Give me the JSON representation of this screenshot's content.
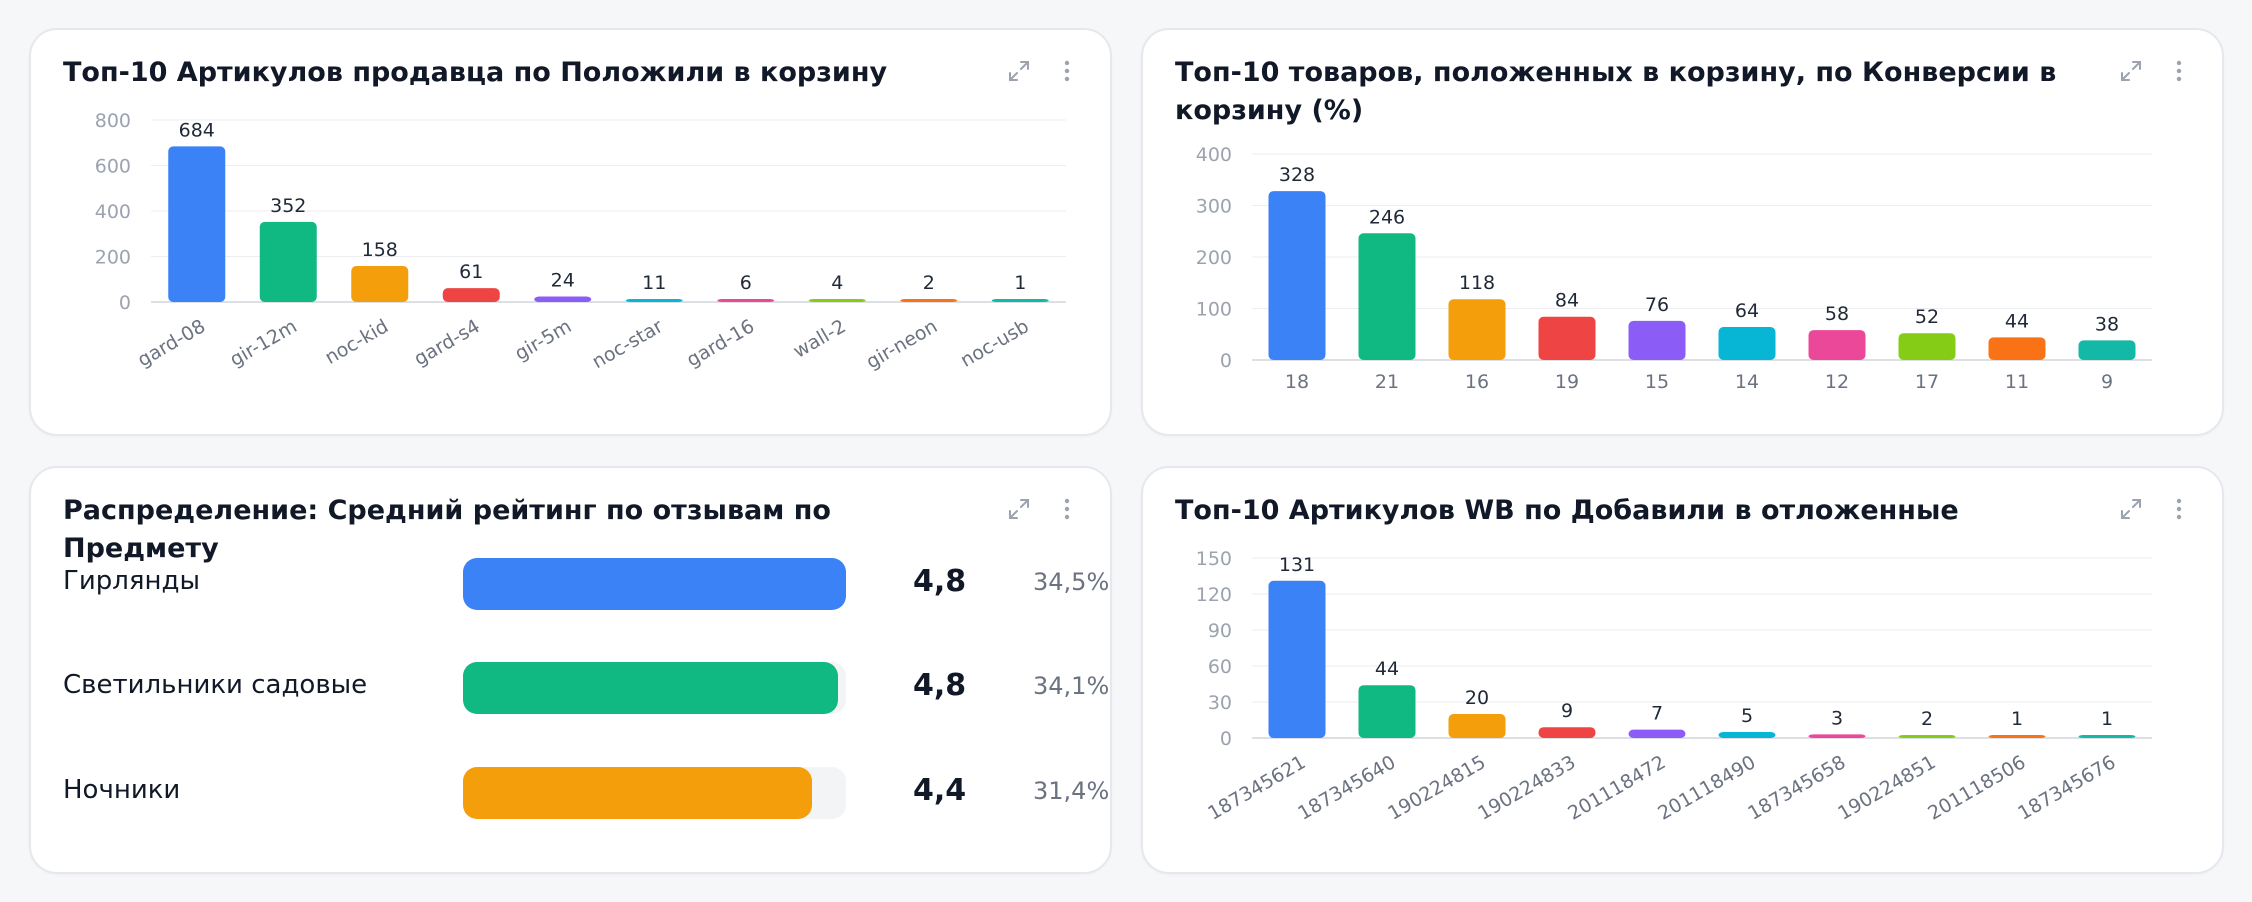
{
  "cards": [
    {
      "title": "Топ-10 Артикулов продавца по Положили в корзину",
      "chart_data": {
        "type": "bar",
        "title": "Топ-10 Артикулов продавца по Положили в корзину",
        "categories": [
          "gard-08",
          "gir-12m",
          "noc-kid",
          "gard-s4",
          "gir-5m",
          "noc-star",
          "gard-16",
          "wall-2",
          "gir-neon",
          "noc-usb"
        ],
        "values": [
          684,
          352,
          158,
          61,
          24,
          11,
          6,
          4,
          2,
          1
        ],
        "yticks": [
          0,
          200,
          400,
          600,
          800
        ],
        "ylim": [
          0,
          800
        ],
        "grid": true,
        "legend": "none",
        "rotated_labels": true,
        "colors": [
          "#3b82f6",
          "#10b981",
          "#f59e0b",
          "#ef4444",
          "#8b5cf6",
          "#06b6d4",
          "#ec4899",
          "#84cc16",
          "#f97316",
          "#14b8a6"
        ]
      }
    },
    {
      "title": "Топ-10 товаров, положенных в корзину, по Конверсии в корзину (%)",
      "chart_data": {
        "type": "bar",
        "title": "Топ-10 товаров, положенных в корзину, по Конверсии в корзину (%)",
        "categories": [
          "18",
          "21",
          "16",
          "19",
          "15",
          "14",
          "12",
          "17",
          "11",
          "9"
        ],
        "values": [
          328,
          246,
          118,
          84,
          76,
          64,
          58,
          52,
          44,
          38
        ],
        "yticks": [
          0,
          100,
          200,
          300,
          400
        ],
        "ylim": [
          0,
          400
        ],
        "grid": true,
        "legend": "none",
        "rotated_labels": false,
        "colors": [
          "#3b82f6",
          "#10b981",
          "#f59e0b",
          "#ef4444",
          "#8b5cf6",
          "#06b6d4",
          "#ec4899",
          "#84cc16",
          "#f97316",
          "#14b8a6"
        ]
      }
    },
    {
      "title": "Распределение: Средний рейтинг по отзывам по Предмету",
      "distribution": {
        "type": "table",
        "rows": [
          {
            "label": "Гирлянды",
            "value": "4,8",
            "share": "34,5%",
            "fill": 1.0,
            "color": "#3b82f6"
          },
          {
            "label": "Светильники садовые",
            "value": "4,8",
            "share": "34,1%",
            "fill": 0.98,
            "color": "#10b981"
          },
          {
            "label": "Ночники",
            "value": "4,4",
            "share": "31,4%",
            "fill": 0.91,
            "color": "#f59e0b"
          }
        ]
      }
    },
    {
      "title": "Топ-10 Артикулов WB по Добавили в отложенные",
      "chart_data": {
        "type": "bar",
        "title": "Топ-10 Артикулов WB по Добавили в отложенные",
        "categories": [
          "187345621",
          "187345640",
          "190224815",
          "190224833",
          "201118472",
          "201118490",
          "187345658",
          "190224851",
          "201118506",
          "187345676"
        ],
        "values": [
          131,
          44,
          20,
          9,
          7,
          5,
          3,
          2,
          1,
          1
        ],
        "yticks": [
          0,
          30,
          60,
          90,
          120,
          150
        ],
        "ylim": [
          0,
          150
        ],
        "grid": true,
        "legend": "none",
        "rotated_labels": true,
        "colors": [
          "#3b82f6",
          "#10b981",
          "#f59e0b",
          "#ef4444",
          "#8b5cf6",
          "#06b6d4",
          "#ec4899",
          "#84cc16",
          "#f97316",
          "#14b8a6"
        ]
      }
    }
  ],
  "icons": {
    "expand": "expand-icon",
    "menu": "more-vertical-icon"
  }
}
